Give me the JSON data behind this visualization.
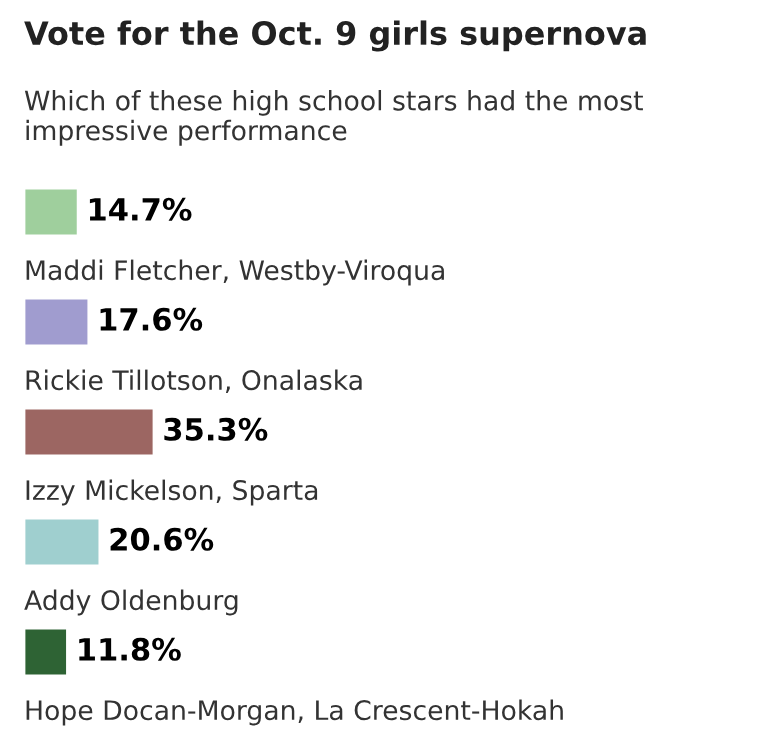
{
  "chart_data": {
    "type": "bar",
    "orientation": "horizontal",
    "title": "Vote for the Oct. 9 girls supernova",
    "subtitle": "Which of these high school stars had the most impressive performance",
    "categories": [
      null,
      "Maddi Fletcher, Westby-Viroqua",
      "Rickie Tillotson, Onalaska",
      "Izzy Mickelson, Sparta",
      "Addy Oldenburg",
      "Hope Docan-Morgan, La Crescent-Hokah"
    ],
    "values": [
      14.7,
      17.6,
      35.3,
      20.6,
      11.8,
      null
    ],
    "value_labels": [
      "14.7%",
      "17.6%",
      "35.3%",
      "20.6%",
      "11.8%",
      null
    ],
    "colors": [
      "#9fcf9d",
      "#a09ccf",
      "#9c6662",
      "#9fcfcf",
      "#2e6334",
      null
    ]
  }
}
